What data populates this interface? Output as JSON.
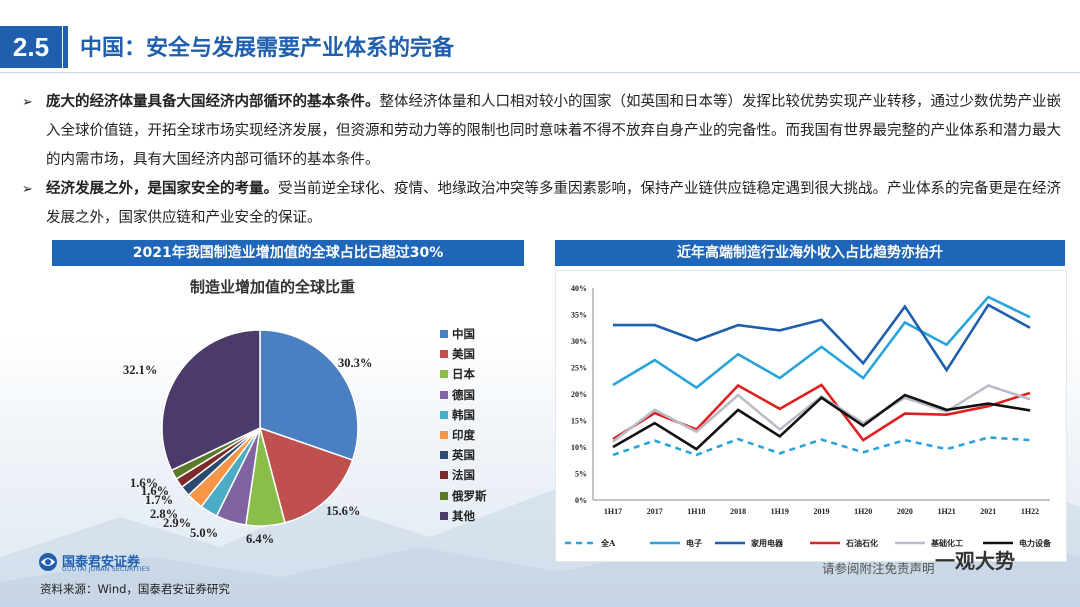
{
  "header": {
    "section_num": "2.5",
    "title": "中国：安全与发展需要产业体系的完备"
  },
  "bullets": [
    {
      "bold": "庞大的经济体量具备大国经济内部循环的基本条件。",
      "text": "整体经济体量和人口相对较小的国家（如英国和日本等）发挥比较优势实现产业转移，通过少数优势产业嵌入全球价值链，开拓全球市场实现经济发展，但资源和劳动力等的限制也同时意味着不得不放弃自身产业的完备性。而我国有世界最完整的产业体系和潜力最大的内需市场，具有大国经济内部可循环的基本条件。"
    },
    {
      "bold": "经济发展之外，是国家安全的考量。",
      "text": "受当前逆全球化、疫情、地缘政治冲突等多重因素影响，保持产业链供应链稳定遇到很大挑战。产业体系的完备更是在经济发展之外，国家供应链和产业安全的保证。"
    }
  ],
  "left_banner": "2021年我国制造业增加值的全球占比已超过30%",
  "right_banner": "近年高端制造行业海外收入占比趋势亦抬升",
  "footer": {
    "logo_text": "国泰君安证券",
    "logo_sub": "GUOTAI JUNAN SECURITIES",
    "source": "资料来源：Wind，国泰君安证券研究",
    "disclaimer": "请参阅附注免责声明",
    "watermark": "一观大势"
  },
  "colors": {
    "brand": "#1f5fae",
    "banner": "#1f66b8"
  },
  "chart_data": [
    {
      "type": "pie",
      "title": "制造业增加值的全球比重",
      "labels": [
        "中国",
        "美国",
        "日本",
        "德国",
        "韩国",
        "印度",
        "英国",
        "法国",
        "俄罗斯",
        "其他"
      ],
      "values": [
        30.3,
        15.6,
        6.4,
        5.0,
        2.9,
        2.8,
        1.7,
        1.6,
        1.6,
        32.1
      ],
      "value_labels": [
        "30.3%",
        "15.6%",
        "6.4%",
        "5.0%",
        "2.9%",
        "2.8%",
        "1.7%",
        "1.6%",
        "1.6%",
        "32.1%"
      ],
      "colors": [
        "#4a7fc1",
        "#c0504d",
        "#8bbd4a",
        "#8064a2",
        "#4bacc6",
        "#f79646",
        "#2b4a6f",
        "#7d2a2a",
        "#5a7a2a",
        "#4a3b6b"
      ],
      "legend_position": "right"
    },
    {
      "type": "line",
      "categories": [
        "1H17",
        "2017",
        "1H18",
        "2018",
        "1H19",
        "2019",
        "1H20",
        "2020",
        "1H21",
        "2021",
        "1H22"
      ],
      "y_ticks": [
        "0%",
        "5%",
        "10%",
        "15%",
        "20%",
        "25%",
        "30%",
        "35%",
        "40%"
      ],
      "ylim": [
        0,
        40
      ],
      "grid": false,
      "legend_position": "bottom",
      "series": [
        {
          "name": "全A",
          "color": "#29a3dc",
          "dash": true,
          "values": [
            8.5,
            11.2,
            8.5,
            11.5,
            8.8,
            11.4,
            9.0,
            11.3,
            9.6,
            11.8,
            11.3
          ]
        },
        {
          "name": "电子",
          "color": "#29a3dc",
          "dash": false,
          "values": [
            21.7,
            26.4,
            21.2,
            27.5,
            23.0,
            28.9,
            23.0,
            33.5,
            29.3,
            38.3,
            34.5
          ]
        },
        {
          "name": "家用电器",
          "color": "#1f5fae",
          "dash": false,
          "values": [
            33.0,
            33.0,
            30.1,
            33.0,
            32.0,
            34.0,
            25.8,
            36.5,
            24.5,
            36.8,
            32.5
          ]
        },
        {
          "name": "石油石化",
          "color": "#e02020",
          "dash": false,
          "values": [
            11.5,
            16.4,
            13.3,
            21.6,
            17.2,
            21.7,
            11.3,
            16.3,
            16.1,
            17.7,
            20.2
          ]
        },
        {
          "name": "基础化工",
          "color": "#b8bcc6",
          "dash": false,
          "values": [
            11.0,
            17.0,
            12.9,
            19.8,
            13.3,
            19.5,
            14.5,
            19.3,
            16.7,
            21.6,
            19.0
          ]
        },
        {
          "name": "电力设备",
          "color": "#111111",
          "dash": false,
          "values": [
            10.0,
            14.5,
            9.6,
            17.0,
            12.0,
            19.3,
            14.0,
            19.8,
            17.0,
            18.2,
            16.9
          ]
        }
      ]
    }
  ]
}
